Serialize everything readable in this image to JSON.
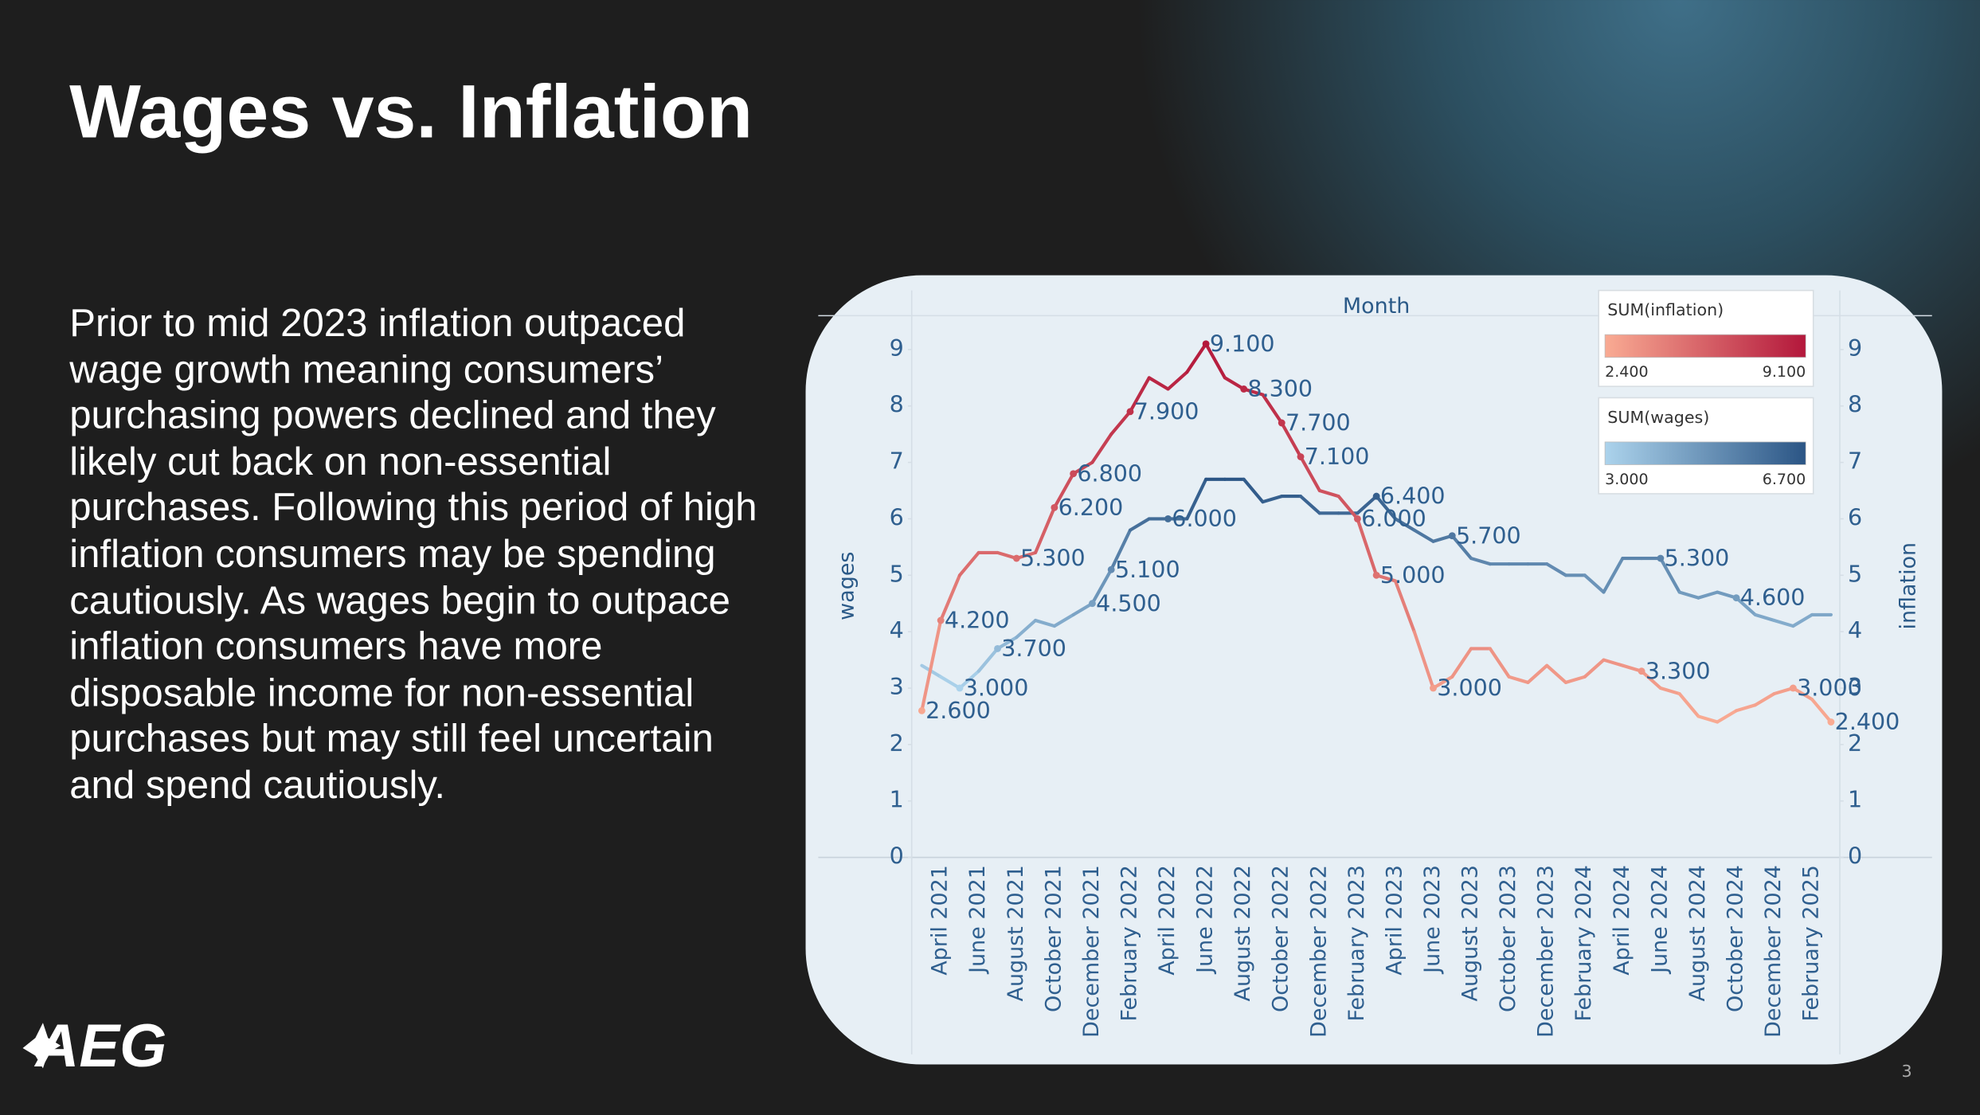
{
  "title": "Wages vs. Inflation",
  "body": "Prior to mid 2023 inflation outpaced wage growth meaning consumers’ purchasing powers declined and they likely cut back on non-essential purchases. Following this period of high inflation consumers may be spending cautiously. As wages begin to outpace inflation consumers have more disposable income for non-essential purchases but may still feel uncertain and spend cautiously.",
  "logo": "AEG",
  "page_number": "3",
  "chart_data": {
    "type": "line",
    "x_label": "Month",
    "y_label": "wages",
    "y2_label": "inflation",
    "categories": [
      null,
      "April 2021",
      null,
      "June 2021",
      null,
      "August 2021",
      null,
      "October 2021",
      null,
      "December 2021",
      null,
      "February 2022",
      null,
      "April 2022",
      null,
      "June 2022",
      null,
      "August 2022",
      null,
      "October 2022",
      null,
      "December 2022",
      null,
      "February 2023",
      null,
      "April 2023",
      null,
      "June 2023",
      null,
      "August 2023",
      null,
      "October 2023",
      null,
      "December 2023",
      null,
      "February 2024",
      null,
      "April 2024",
      null,
      "June 2024",
      null,
      "August 2024",
      null,
      "October 2024",
      null,
      "December 2024",
      null,
      "February 2025",
      null
    ],
    "series": [
      {
        "name": "inflation",
        "axis": "y2",
        "legend_title": "SUM(inflation)",
        "colors": [
          "#f9ab93",
          "#b3173b"
        ],
        "range": [
          2.4,
          9.1
        ],
        "range_labels": [
          "2.400",
          "9.100"
        ],
        "values": [
          2.6,
          4.2,
          5.0,
          5.4,
          5.4,
          5.3,
          5.4,
          6.2,
          6.8,
          7.0,
          7.5,
          7.9,
          8.5,
          8.3,
          8.6,
          9.1,
          8.5,
          8.3,
          8.2,
          7.7,
          7.1,
          6.5,
          6.4,
          6.0,
          5.0,
          4.9,
          4.0,
          3.0,
          3.2,
          3.7,
          3.7,
          3.2,
          3.1,
          3.4,
          3.1,
          3.2,
          3.5,
          3.4,
          3.3,
          3.0,
          2.9,
          2.5,
          2.4,
          2.6,
          2.7,
          2.9,
          3.0,
          2.8,
          2.4
        ],
        "value_labels": [
          "2.600",
          "4.200",
          null,
          null,
          null,
          "5.300",
          null,
          "6.200",
          "6.800",
          null,
          null,
          "7.900",
          null,
          null,
          null,
          "9.100",
          null,
          "8.300",
          null,
          "7.700",
          "7.100",
          null,
          null,
          "6.000",
          "5.000",
          null,
          null,
          "3.000",
          null,
          null,
          null,
          null,
          null,
          null,
          null,
          null,
          null,
          null,
          "3.300",
          null,
          null,
          null,
          null,
          null,
          null,
          null,
          "3.000",
          null,
          "2.400"
        ]
      },
      {
        "name": "wages",
        "legend_title": "SUM(wages)",
        "colors": [
          "#acd3ec",
          "#2b5585"
        ],
        "range": [
          3.0,
          6.7
        ],
        "range_labels": [
          "3.000",
          "6.700"
        ],
        "values": [
          3.4,
          3.2,
          3.0,
          3.3,
          3.7,
          3.9,
          4.2,
          4.1,
          4.3,
          4.5,
          5.1,
          5.8,
          6.0,
          6.0,
          6.0,
          6.7,
          6.7,
          6.7,
          6.3,
          6.4,
          6.4,
          6.1,
          6.1,
          6.1,
          6.4,
          6.0,
          5.8,
          5.6,
          5.7,
          5.3,
          5.2,
          5.2,
          5.2,
          5.2,
          5.0,
          5.0,
          4.7,
          5.3,
          5.3,
          5.3,
          4.7,
          4.6,
          4.7,
          4.6,
          4.3,
          4.2,
          4.1,
          4.3,
          4.3
        ],
        "value_labels": [
          null,
          null,
          "3.000",
          null,
          "3.700",
          null,
          null,
          null,
          null,
          "4.500",
          "5.100",
          null,
          null,
          "6.000",
          null,
          null,
          null,
          null,
          null,
          null,
          null,
          null,
          null,
          null,
          "6.400",
          null,
          null,
          null,
          "5.700",
          null,
          null,
          null,
          null,
          null,
          null,
          null,
          null,
          null,
          null,
          "5.300",
          null,
          null,
          null,
          "4.600",
          null,
          null,
          null,
          null,
          null
        ]
      }
    ],
    "ylim": [
      0,
      9.6
    ],
    "yticks": [
      0,
      1,
      2,
      3,
      4,
      5,
      6,
      7,
      8,
      9
    ],
    "y2lim": [
      0,
      9.6
    ],
    "y2ticks": [
      0,
      1,
      2,
      3,
      4,
      5,
      6,
      7,
      8,
      9
    ]
  }
}
